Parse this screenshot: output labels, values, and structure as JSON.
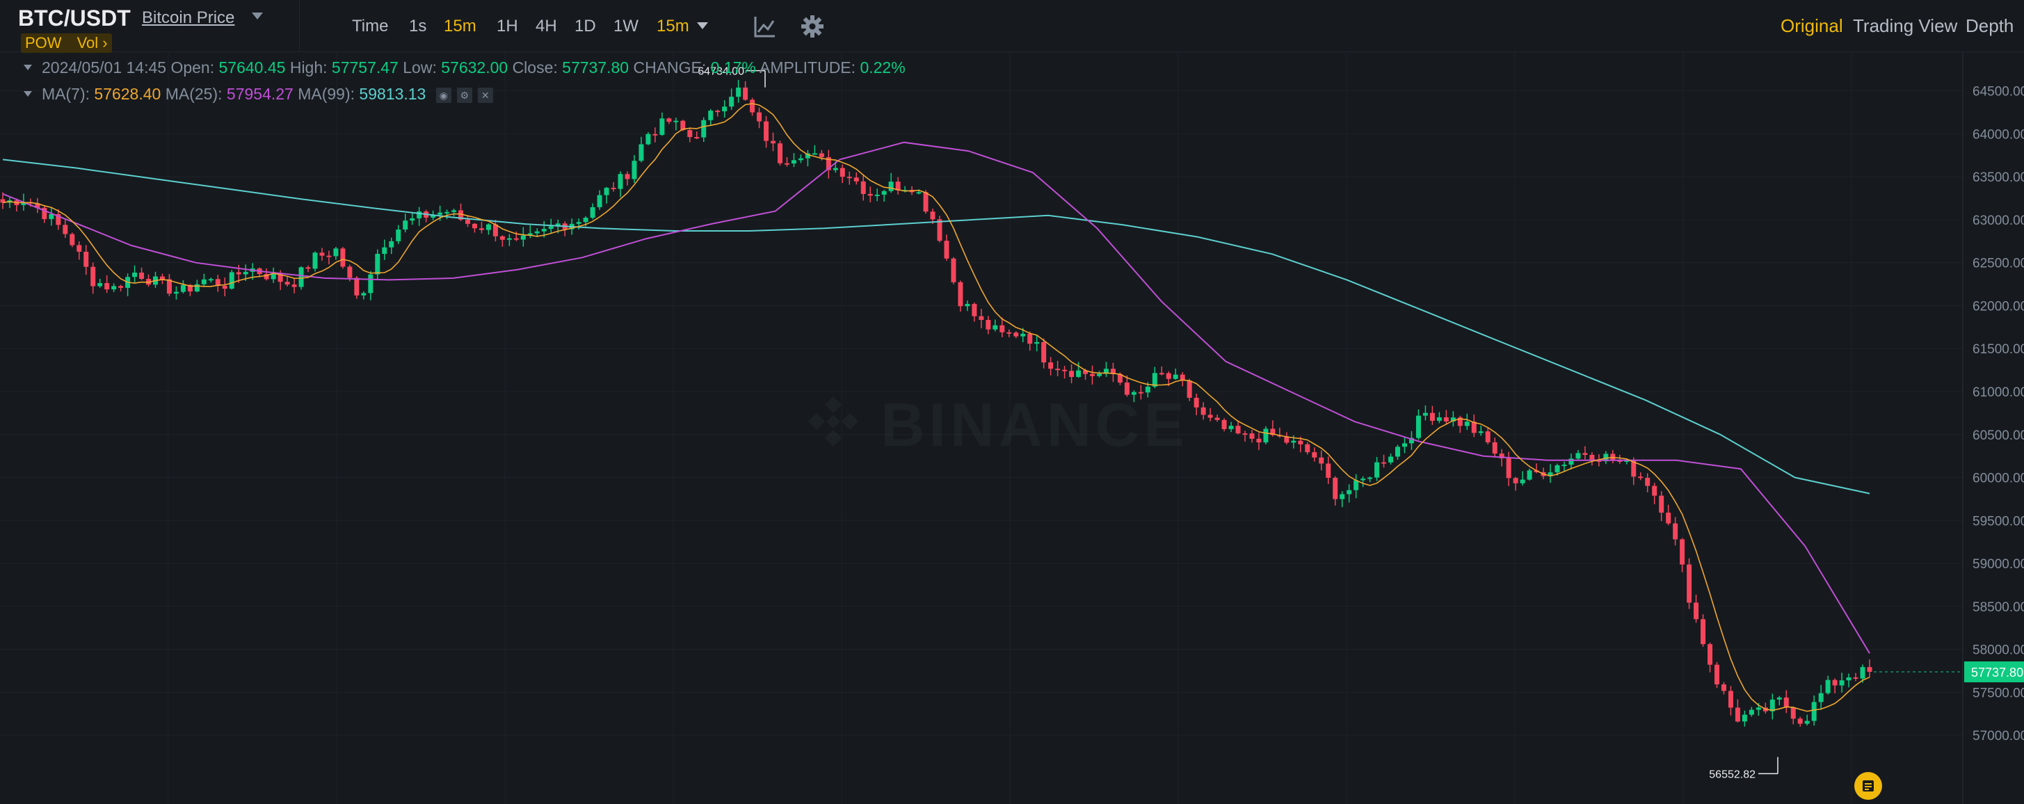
{
  "header": {
    "symbol": "BTC/USDT",
    "subtitle": "Bitcoin Price",
    "badges": [
      "POW",
      "Vol ›"
    ],
    "intervals": [
      {
        "label": "Time",
        "active": false
      },
      {
        "label": "1s",
        "active": false
      },
      {
        "label": "15m",
        "active": true
      },
      {
        "label": "1H",
        "active": false
      },
      {
        "label": "4H",
        "active": false
      },
      {
        "label": "1D",
        "active": false
      },
      {
        "label": "1W",
        "active": false
      }
    ],
    "interval_dropdown": "15m",
    "tools": [
      "indicator-chart-icon",
      "gear-icon"
    ],
    "views": [
      {
        "label": "Original",
        "active": true
      },
      {
        "label": "Trading View",
        "active": false
      },
      {
        "label": "Depth",
        "active": false
      }
    ]
  },
  "ohlc": {
    "date": "2024/05/01 14:45",
    "open_label": "Open:",
    "open": "57640.45",
    "high_label": "High:",
    "high": "57757.47",
    "low_label": "Low:",
    "low": "57632.00",
    "close_label": "Close:",
    "close": "57737.80",
    "change_label": "CHANGE:",
    "change": "0.17%",
    "amplitude_label": "AMPLITUDE:",
    "amplitude": "0.22%"
  },
  "ma": {
    "ma7_label": "MA(7):",
    "ma7": "57628.40",
    "ma25_label": "MA(25):",
    "ma25": "57954.27",
    "ma99_label": "MA(99):",
    "ma99": "59813.13",
    "buttons": [
      "eye-icon",
      "settings-icon",
      "close-icon"
    ]
  },
  "watermark": "BINANCE",
  "colors": {
    "up": "#0ecb81",
    "down": "#f6465d",
    "accent": "#f0b90b",
    "ma7": "#f0a630",
    "ma25": "#c04fd6",
    "ma99": "#5dd0d0",
    "bg": "#161a1e"
  },
  "chart_data": {
    "type": "candlestick",
    "yaxis_ticks": [
      64500,
      64000,
      63500,
      63000,
      62500,
      62000,
      61500,
      61000,
      60500,
      60000,
      59500,
      59000,
      58500,
      58000,
      57500,
      57000
    ],
    "ylim": [
      56200,
      64950
    ],
    "current_price": "57737.80",
    "high_annotation": "64734.00",
    "low_annotation": "56552.82",
    "key_prices": [
      63200,
      63250,
      63050,
      62800,
      62300,
      62200,
      62400,
      62250,
      62150,
      62300,
      62250,
      62450,
      62350,
      62250,
      62550,
      62650,
      62050,
      62700,
      62950,
      63050,
      63100,
      62950,
      62900,
      62700,
      62800,
      62950,
      63000,
      63300,
      63500,
      64000,
      64150,
      63950,
      64250,
      64550,
      64100,
      63700,
      63800,
      63650,
      63550,
      63300,
      63400,
      63400,
      62950,
      62100,
      61800,
      61650,
      61700,
      61350,
      61250,
      61200,
      61200,
      60900,
      61200,
      61100,
      60700,
      60550,
      60450,
      60500,
      60400,
      60250,
      59800,
      59900,
      60200,
      60400,
      60750,
      60700,
      60600,
      60350,
      59950,
      60050,
      60150,
      60300,
      60250,
      60150,
      59950,
      59500,
      58500,
      57700,
      57200,
      57250,
      57400,
      57150,
      57550,
      57700,
      57738
    ],
    "ma99_points": [
      63700,
      63600,
      63480,
      63360,
      63240,
      63130,
      63030,
      62950,
      62900,
      62870,
      62870,
      62900,
      62950,
      63000,
      63050,
      62940,
      62800,
      62600,
      62300,
      61950,
      61600,
      61250,
      60900,
      60500,
      60000,
      59813
    ],
    "ma25_points": [
      63300,
      63000,
      62700,
      62500,
      62400,
      62320,
      62300,
      62320,
      62420,
      62560,
      62780,
      62950,
      63100,
      63700,
      63900,
      63800,
      63550,
      62900,
      62050,
      61350,
      61000,
      60650,
      60420,
      60250,
      60200,
      60200,
      60200,
      60100,
      59200,
      57954
    ]
  }
}
